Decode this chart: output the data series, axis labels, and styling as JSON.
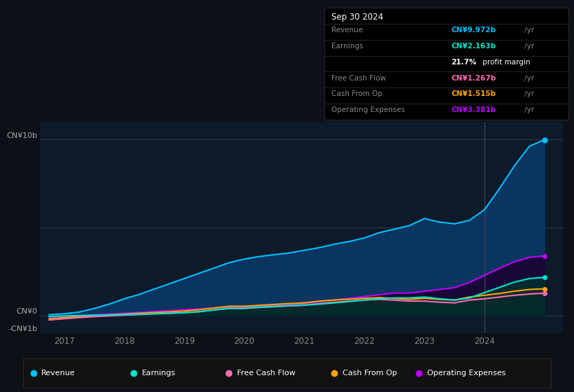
{
  "background_color": "#0d1117",
  "plot_bg_color": "#0d1a2a",
  "ylabel_top": "CN¥10b",
  "ylabel_zero": "CN¥0",
  "ylabel_neg": "-CN¥1b",
  "ylim": [
    -1.0,
    11.0
  ],
  "xlim": [
    2016.6,
    2025.3
  ],
  "xticks": [
    2017,
    2018,
    2019,
    2020,
    2021,
    2022,
    2023,
    2024
  ],
  "tooltip": {
    "date": "Sep 30 2024",
    "Revenue": {
      "value": "CN¥9.972b",
      "color": "#00bfff"
    },
    "Earnings": {
      "value": "CN¥2.163b",
      "color": "#00e5cc"
    },
    "profit_margin": "21.7%",
    "profit_margin_text": " profit margin",
    "Free Cash Flow": {
      "value": "CN¥1.267b",
      "color": "#ff69b4"
    },
    "Cash From Op": {
      "value": "CN¥1.515b",
      "color": "#ffa500"
    },
    "Operating Expenses": {
      "value": "CN¥3.381b",
      "color": "#bf00ff"
    }
  },
  "series": {
    "Revenue": {
      "color": "#00bfff",
      "fill_color": "#0a3a5c",
      "data_x": [
        2016.75,
        2017.0,
        2017.25,
        2017.5,
        2017.75,
        2018.0,
        2018.25,
        2018.5,
        2018.75,
        2019.0,
        2019.25,
        2019.5,
        2019.75,
        2020.0,
        2020.25,
        2020.5,
        2020.75,
        2021.0,
        2021.25,
        2021.5,
        2021.75,
        2022.0,
        2022.25,
        2022.5,
        2022.75,
        2023.0,
        2023.25,
        2023.5,
        2023.75,
        2024.0,
        2024.25,
        2024.5,
        2024.75,
        2025.0
      ],
      "data_y": [
        0.05,
        0.1,
        0.2,
        0.4,
        0.65,
        0.95,
        1.2,
        1.5,
        1.8,
        2.1,
        2.4,
        2.7,
        3.0,
        3.2,
        3.35,
        3.45,
        3.55,
        3.7,
        3.85,
        4.05,
        4.2,
        4.4,
        4.7,
        4.9,
        5.1,
        5.5,
        5.3,
        5.2,
        5.4,
        6.0,
        7.2,
        8.5,
        9.6,
        9.97
      ]
    },
    "Earnings": {
      "color": "#00e5cc",
      "fill_color": "#003030",
      "data_x": [
        2016.75,
        2017.0,
        2017.25,
        2017.5,
        2017.75,
        2018.0,
        2018.25,
        2018.5,
        2018.75,
        2019.0,
        2019.25,
        2019.5,
        2019.75,
        2020.0,
        2020.25,
        2020.5,
        2020.75,
        2021.0,
        2021.25,
        2021.5,
        2021.75,
        2022.0,
        2022.25,
        2022.5,
        2022.75,
        2023.0,
        2023.25,
        2023.5,
        2023.75,
        2024.0,
        2024.25,
        2024.5,
        2024.75,
        2025.0
      ],
      "data_y": [
        -0.05,
        -0.02,
        0.0,
        0.02,
        0.04,
        0.06,
        0.08,
        0.1,
        0.13,
        0.16,
        0.22,
        0.32,
        0.42,
        0.42,
        0.48,
        0.52,
        0.56,
        0.6,
        0.65,
        0.72,
        0.8,
        0.88,
        0.95,
        1.0,
        1.0,
        1.05,
        0.95,
        0.88,
        1.0,
        1.3,
        1.6,
        1.9,
        2.1,
        2.163
      ]
    },
    "Free Cash Flow": {
      "color": "#ff69b4",
      "fill_color": "#2a0018",
      "data_x": [
        2016.75,
        2017.0,
        2017.25,
        2017.5,
        2017.75,
        2018.0,
        2018.25,
        2018.5,
        2018.75,
        2019.0,
        2019.25,
        2019.5,
        2019.75,
        2020.0,
        2020.25,
        2020.5,
        2020.75,
        2021.0,
        2021.25,
        2021.5,
        2021.75,
        2022.0,
        2022.25,
        2022.5,
        2022.75,
        2023.0,
        2023.25,
        2023.5,
        2023.75,
        2024.0,
        2024.25,
        2024.5,
        2024.75,
        2025.0
      ],
      "data_y": [
        -0.25,
        -0.18,
        -0.12,
        -0.06,
        -0.02,
        0.02,
        0.06,
        0.1,
        0.13,
        0.17,
        0.22,
        0.32,
        0.4,
        0.4,
        0.46,
        0.5,
        0.55,
        0.58,
        0.68,
        0.75,
        0.82,
        0.88,
        0.92,
        0.87,
        0.82,
        0.82,
        0.76,
        0.72,
        0.88,
        0.95,
        1.05,
        1.15,
        1.22,
        1.267
      ]
    },
    "Cash From Op": {
      "color": "#ffa500",
      "fill_color": "#2a1800",
      "data_x": [
        2016.75,
        2017.0,
        2017.25,
        2017.5,
        2017.75,
        2018.0,
        2018.25,
        2018.5,
        2018.75,
        2019.0,
        2019.25,
        2019.5,
        2019.75,
        2020.0,
        2020.25,
        2020.5,
        2020.75,
        2021.0,
        2021.25,
        2021.5,
        2021.75,
        2022.0,
        2022.25,
        2022.5,
        2022.75,
        2023.0,
        2023.25,
        2023.5,
        2023.75,
        2024.0,
        2024.25,
        2024.5,
        2024.75,
        2025.0
      ],
      "data_y": [
        -0.18,
        -0.12,
        -0.06,
        0.0,
        0.04,
        0.08,
        0.13,
        0.17,
        0.21,
        0.26,
        0.33,
        0.43,
        0.53,
        0.53,
        0.58,
        0.63,
        0.68,
        0.72,
        0.82,
        0.88,
        0.93,
        0.98,
        1.02,
        0.97,
        0.92,
        0.98,
        0.92,
        0.88,
        1.05,
        1.15,
        1.25,
        1.38,
        1.48,
        1.515
      ]
    },
    "Operating Expenses": {
      "color": "#bf00ff",
      "fill_color": "#1a0030",
      "data_x": [
        2016.75,
        2017.0,
        2017.25,
        2017.5,
        2017.75,
        2018.0,
        2018.25,
        2018.5,
        2018.75,
        2019.0,
        2019.25,
        2019.5,
        2019.75,
        2020.0,
        2020.25,
        2020.5,
        2020.75,
        2021.0,
        2021.25,
        2021.5,
        2021.75,
        2022.0,
        2022.25,
        2022.5,
        2022.75,
        2023.0,
        2023.25,
        2023.5,
        2023.75,
        2024.0,
        2024.25,
        2024.5,
        2024.75,
        2025.0
      ],
      "data_y": [
        -0.08,
        -0.04,
        0.0,
        0.04,
        0.08,
        0.13,
        0.18,
        0.23,
        0.28,
        0.33,
        0.38,
        0.43,
        0.48,
        0.48,
        0.53,
        0.58,
        0.63,
        0.68,
        0.78,
        0.88,
        0.98,
        1.08,
        1.18,
        1.28,
        1.28,
        1.38,
        1.48,
        1.58,
        1.88,
        2.28,
        2.68,
        3.05,
        3.3,
        3.381
      ]
    }
  },
  "legend": [
    {
      "label": "Revenue",
      "color": "#00bfff"
    },
    {
      "label": "Earnings",
      "color": "#00e5cc"
    },
    {
      "label": "Free Cash Flow",
      "color": "#ff69b4"
    },
    {
      "label": "Cash From Op",
      "color": "#ffa500"
    },
    {
      "label": "Operating Expenses",
      "color": "#bf00ff"
    }
  ],
  "vline_x": 2024.0,
  "vline_color": "#444455"
}
